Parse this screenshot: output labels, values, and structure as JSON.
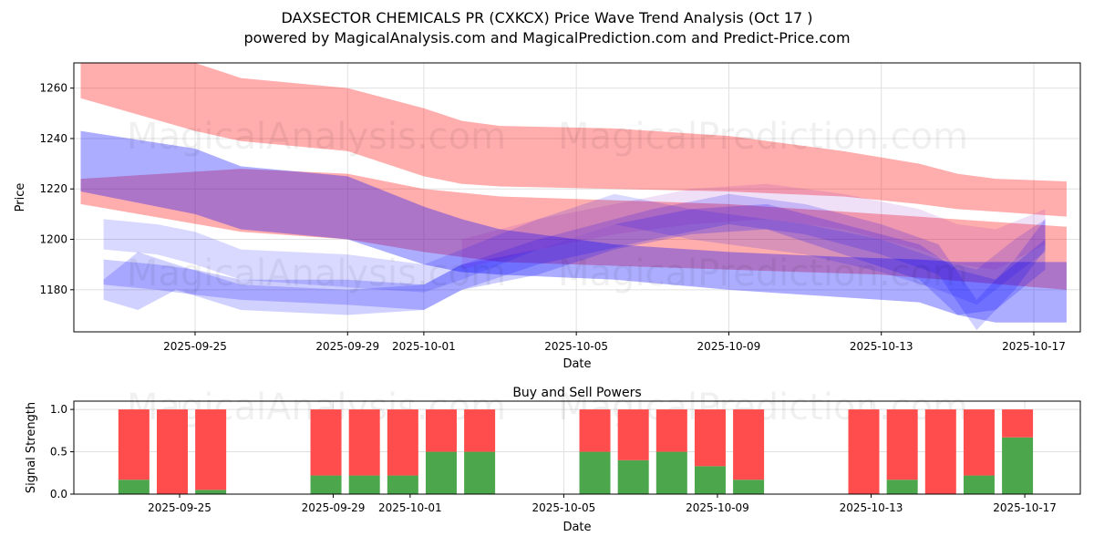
{
  "chart_data": [
    {
      "type": "area",
      "title": "DAXSECTOR CHEMICALS PR (CXKCX) Price Wave Trend Analysis (Oct 17 )",
      "subtitle": "powered by MagicalAnalysis.com and MagicalPrediction.com and Predict-Price.com",
      "xlabel": "Date",
      "ylabel": "Price",
      "x_origin_date": "2025-09-25",
      "xlim_days": [
        -3.18,
        23.22
      ],
      "ylim": [
        1163.3,
        1270
      ],
      "grid": true,
      "x_ticks": [
        {
          "day": 0,
          "label": "2025-09-25"
        },
        {
          "day": 4,
          "label": "2025-09-29"
        },
        {
          "day": 6,
          "label": "2025-10-01"
        },
        {
          "day": 10,
          "label": "2025-10-05"
        },
        {
          "day": 14,
          "label": "2025-10-09"
        },
        {
          "day": 18,
          "label": "2025-10-13"
        },
        {
          "day": 22,
          "label": "2025-10-17"
        }
      ],
      "y_ticks": [
        1180,
        1200,
        1220,
        1240,
        1260
      ],
      "watermarks": [
        "MagicalAnalysis.com",
        "MagicalPrediction.com"
      ],
      "bands": [
        {
          "name": "red-upper",
          "color": "#ff0000",
          "alpha": 0.32,
          "x": [
            -3,
            0,
            1.2,
            4,
            6,
            7,
            8,
            11,
            14,
            17,
            19,
            20,
            21,
            22.86
          ],
          "upper": [
            1270,
            1270,
            1264,
            1260,
            1252,
            1247,
            1245,
            1244,
            1241,
            1235,
            1230,
            1226,
            1224,
            1223
          ],
          "lower": [
            1256,
            1243,
            1239,
            1235,
            1225,
            1222,
            1221,
            1220,
            1219,
            1217,
            1214,
            1212,
            1211,
            1209
          ]
        },
        {
          "name": "red-lower",
          "color": "#ff0000",
          "alpha": 0.32,
          "x": [
            -3,
            1.2,
            4,
            6,
            8,
            14,
            18,
            22.86
          ],
          "upper": [
            1224,
            1228,
            1226,
            1220,
            1217,
            1214,
            1210,
            1205
          ],
          "lower": [
            1214,
            1203,
            1200,
            1195,
            1191,
            1188,
            1186,
            1180
          ]
        },
        {
          "name": "blue-main",
          "color": "#0000ff",
          "alpha": 0.32,
          "x": [
            -3,
            0,
            1.2,
            4,
            6,
            7,
            8,
            11,
            14,
            17,
            19,
            20,
            21,
            22.86
          ],
          "upper": [
            1243,
            1236,
            1229,
            1225,
            1213,
            1208,
            1204,
            1198,
            1195,
            1193,
            1192,
            1191,
            1191,
            1191
          ],
          "lower": [
            1219,
            1210,
            1204,
            1200,
            1190,
            1187,
            1186,
            1184,
            1180,
            1177,
            1175,
            1170,
            1167,
            1167
          ]
        },
        {
          "name": "blue-wave-1",
          "color": "#0000ff",
          "alpha": 0.15,
          "x": [
            -2.4,
            -1,
            0,
            1.2,
            4,
            6,
            7,
            9,
            11,
            13,
            14,
            16,
            18,
            19.5,
            20.5,
            21.5,
            22.3
          ],
          "upper": [
            1208,
            1206,
            1203,
            1196,
            1194,
            1190,
            1196,
            1208,
            1218,
            1212,
            1210,
            1206,
            1200,
            1192,
            1188,
            1200,
            1208
          ],
          "lower": [
            1196,
            1194,
            1190,
            1184,
            1181,
            1179,
            1184,
            1196,
            1206,
            1200,
            1198,
            1194,
            1187,
            1180,
            1174,
            1186,
            1195
          ]
        },
        {
          "name": "blue-wave-2",
          "color": "#0000ff",
          "alpha": 0.18,
          "x": [
            -2.4,
            -1.5,
            -0.5,
            1.2,
            4,
            6,
            7,
            9,
            12,
            14,
            16,
            18,
            19.5,
            20.5,
            21.5,
            22.3
          ],
          "upper": [
            1184,
            1195,
            1190,
            1182,
            1180,
            1182,
            1190,
            1200,
            1212,
            1218,
            1214,
            1206,
            1198,
            1176,
            1192,
            1208
          ],
          "lower": [
            1176,
            1172,
            1180,
            1172,
            1170,
            1172,
            1180,
            1190,
            1200,
            1206,
            1202,
            1194,
            1186,
            1164,
            1180,
            1196
          ]
        },
        {
          "name": "blue-wave-3",
          "color": "#0000ff",
          "alpha": 0.2,
          "x": [
            -2.4,
            -1,
            0,
            1.2,
            4,
            6,
            7,
            9,
            11,
            13,
            15,
            17,
            19,
            20,
            21,
            22.3
          ],
          "upper": [
            1192,
            1190,
            1188,
            1184,
            1184,
            1182,
            1190,
            1196,
            1206,
            1212,
            1214,
            1206,
            1198,
            1188,
            1184,
            1200
          ],
          "lower": [
            1182,
            1180,
            1178,
            1176,
            1174,
            1172,
            1180,
            1186,
            1196,
            1202,
            1204,
            1194,
            1184,
            1170,
            1172,
            1188
          ]
        },
        {
          "name": "purple-wave",
          "color": "#8000c0",
          "alpha": 0.12,
          "x": [
            7,
            9,
            11,
            13,
            15,
            17,
            19,
            20,
            21,
            22.3
          ],
          "upper": [
            1200,
            1208,
            1214,
            1220,
            1222,
            1218,
            1212,
            1206,
            1204,
            1212
          ],
          "lower": [
            1188,
            1196,
            1202,
            1206,
            1208,
            1204,
            1196,
            1190,
            1188,
            1198
          ]
        }
      ]
    },
    {
      "type": "bar",
      "title": "Buy and Sell Powers",
      "xlabel": "Date",
      "ylabel": "Signal Strength",
      "ylim": [
        0,
        1.098
      ],
      "y_ticks": [
        "0.0",
        "0.5",
        "1.0"
      ],
      "x_ticks": [
        {
          "day": 0,
          "label": "2025-09-25"
        },
        {
          "day": 4,
          "label": "2025-09-29"
        },
        {
          "day": 6,
          "label": "2025-10-01"
        },
        {
          "day": 10,
          "label": "2025-10-05"
        },
        {
          "day": 14,
          "label": "2025-10-09"
        },
        {
          "day": 18,
          "label": "2025-10-13"
        },
        {
          "day": 22,
          "label": "2025-10-17"
        }
      ],
      "categories_day": [
        -1,
        0,
        1,
        4,
        5,
        6,
        7,
        8,
        11,
        12,
        13,
        14,
        15,
        18,
        19,
        20,
        21,
        22
      ],
      "categories": [
        "2025-09-24",
        "2025-09-25",
        "2025-09-26",
        "2025-09-29",
        "2025-09-30",
        "2025-10-01",
        "2025-10-02",
        "2025-10-03",
        "2025-10-06",
        "2025-10-07",
        "2025-10-08",
        "2025-10-09",
        "2025-10-10",
        "2025-10-13",
        "2025-10-14",
        "2025-10-15",
        "2025-10-16",
        "2025-10-17"
      ],
      "series": [
        {
          "name": "Buy",
          "color": "#4ca64c",
          "values": [
            0.17,
            0,
            0.05,
            0.22,
            0.22,
            0.22,
            0.5,
            0.5,
            0.5,
            0.4,
            0.5,
            0.33,
            0.17,
            0,
            0.17,
            0,
            0.22,
            0.67
          ]
        },
        {
          "name": "Sell",
          "color": "#ff4c4c",
          "values": [
            0.83,
            1,
            0.95,
            0.78,
            0.78,
            0.78,
            0.5,
            0.5,
            0.5,
            0.6,
            0.5,
            0.67,
            0.83,
            1,
            0.83,
            1,
            0.78,
            0.33
          ]
        }
      ],
      "watermarks": [
        "MagicalAnalysis.com",
        "MagicalPrediction.com"
      ]
    }
  ]
}
